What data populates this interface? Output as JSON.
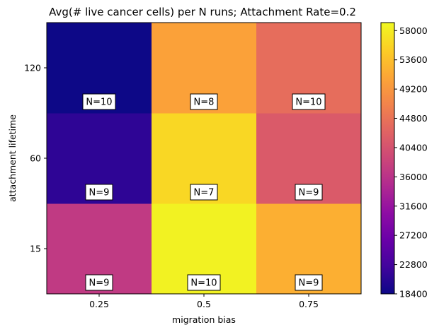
{
  "chart_data": {
    "type": "heatmap",
    "title": "Avg(# live cancer cells) per N runs; Attachment Rate=0.2",
    "xlabel": "migration bias",
    "ylabel": "attachment lifetime",
    "x": [
      "0.25",
      "0.5",
      "0.75"
    ],
    "y": [
      "15",
      "60",
      "120"
    ],
    "values": [
      [
        37000,
        58500,
        52000
      ],
      [
        21000,
        56000,
        41500
      ],
      [
        18400,
        50500,
        44000
      ]
    ],
    "counts": [
      [
        "N=9",
        "N=10",
        "N=9"
      ],
      [
        "N=9",
        "N=7",
        "N=9"
      ],
      [
        "N=10",
        "N=8",
        "N=10"
      ]
    ],
    "colorbar": {
      "colormap": "plasma",
      "min": 18400,
      "max": 59200,
      "ticks": [
        "18400",
        "22800",
        "27200",
        "31600",
        "36000",
        "40400",
        "44800",
        "49200",
        "53600",
        "58000"
      ]
    }
  }
}
